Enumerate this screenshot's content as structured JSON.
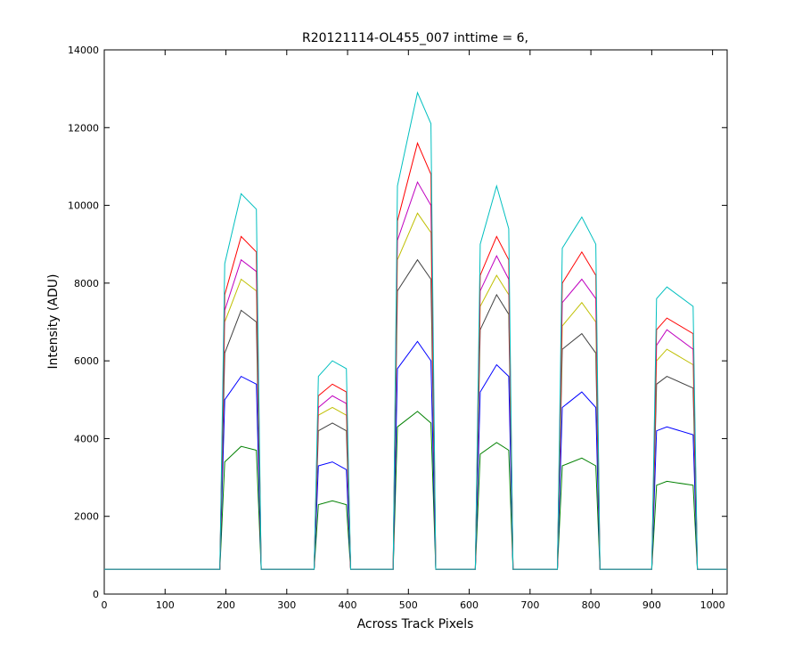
{
  "chart_data": {
    "type": "line",
    "title": "R20121114-OL455_007 inttime = 6,",
    "xlabel": "Across Track Pixels",
    "ylabel": "Intensity (ADU)",
    "xlim": [
      0,
      1024
    ],
    "ylim": [
      0,
      14000
    ],
    "xticks": [
      0,
      100,
      200,
      300,
      400,
      500,
      600,
      700,
      800,
      900,
      1000
    ],
    "yticks": [
      0,
      2000,
      4000,
      6000,
      8000,
      10000,
      12000,
      14000
    ],
    "grid": false,
    "legend": "none",
    "baseline": 640,
    "x": [
      0,
      190,
      198,
      225,
      250,
      258,
      345,
      352,
      375,
      398,
      405,
      475,
      482,
      515,
      537,
      545,
      610,
      618,
      645,
      665,
      672,
      745,
      753,
      785,
      808,
      815,
      900,
      908,
      925,
      968,
      975,
      1024
    ],
    "series": [
      {
        "color": "#00bfbf",
        "values": [
          640,
          640,
          8500,
          10300,
          9900,
          640,
          640,
          5600,
          6000,
          5800,
          640,
          640,
          10500,
          12900,
          12100,
          640,
          640,
          9000,
          10500,
          9400,
          640,
          640,
          8900,
          9700,
          9000,
          640,
          640,
          7600,
          7900,
          7400,
          640,
          640
        ]
      },
      {
        "color": "#ff0000",
        "values": [
          640,
          640,
          7700,
          9200,
          8800,
          640,
          640,
          5100,
          5400,
          5200,
          640,
          640,
          9600,
          11600,
          10800,
          640,
          640,
          8200,
          9200,
          8600,
          640,
          640,
          8000,
          8800,
          8200,
          640,
          640,
          6800,
          7100,
          6700,
          640,
          640
        ]
      },
      {
        "color": "#bf00bf",
        "values": [
          640,
          640,
          7300,
          8600,
          8300,
          640,
          640,
          4800,
          5100,
          4900,
          640,
          640,
          9100,
          10600,
          10000,
          640,
          640,
          7800,
          8700,
          8100,
          640,
          640,
          7500,
          8100,
          7600,
          640,
          640,
          6400,
          6800,
          6300,
          640,
          640
        ]
      },
      {
        "color": "#bfbf00",
        "values": [
          640,
          640,
          7000,
          8100,
          7800,
          640,
          640,
          4600,
          4800,
          4600,
          640,
          640,
          8600,
          9800,
          9300,
          640,
          640,
          7400,
          8200,
          7700,
          640,
          640,
          6900,
          7500,
          7000,
          640,
          640,
          6000,
          6300,
          5900,
          640,
          640
        ]
      },
      {
        "color": "#404040",
        "values": [
          640,
          640,
          6200,
          7300,
          7000,
          640,
          640,
          4200,
          4400,
          4200,
          640,
          640,
          7800,
          8600,
          8100,
          640,
          640,
          6800,
          7700,
          7200,
          640,
          640,
          6300,
          6700,
          6200,
          640,
          640,
          5400,
          5600,
          5300,
          640,
          640
        ]
      },
      {
        "color": "#0000ff",
        "values": [
          640,
          640,
          5000,
          5600,
          5400,
          640,
          640,
          3300,
          3400,
          3200,
          640,
          640,
          5800,
          6500,
          6000,
          640,
          640,
          5200,
          5900,
          5600,
          640,
          640,
          4800,
          5200,
          4800,
          640,
          640,
          4200,
          4300,
          4100,
          640,
          640
        ]
      },
      {
        "color": "#008000",
        "values": [
          640,
          640,
          3400,
          3800,
          3700,
          640,
          640,
          2300,
          2400,
          2300,
          640,
          640,
          4300,
          4700,
          4400,
          640,
          640,
          3600,
          3900,
          3700,
          640,
          640,
          3300,
          3500,
          3300,
          640,
          640,
          2800,
          2900,
          2800,
          640,
          640
        ]
      }
    ]
  }
}
